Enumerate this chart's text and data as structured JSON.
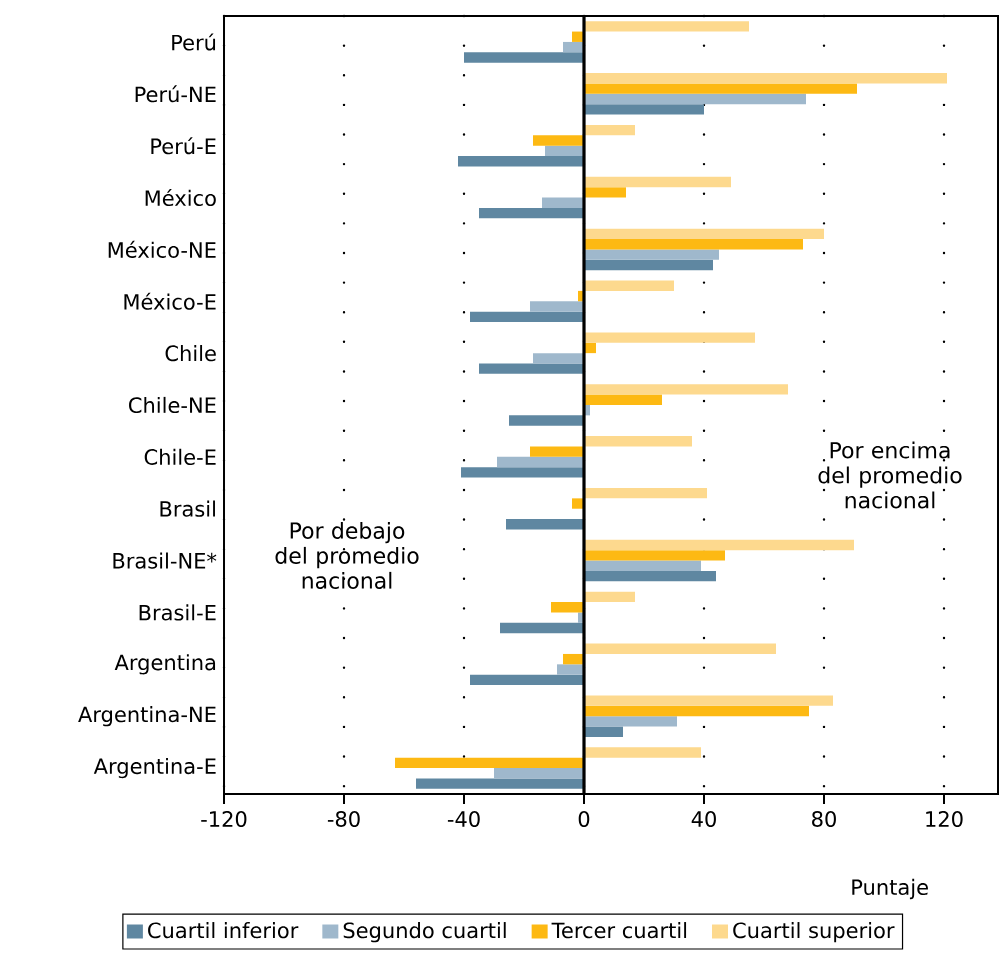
{
  "chart_data": {
    "type": "bar",
    "orientation": "horizontal",
    "xlabel": "Puntaje",
    "categories": [
      "Perú",
      "Perú-NE",
      "Perú-E",
      "México",
      "México-NE",
      "México-E",
      "Chile",
      "Chile-NE",
      "Chile-E",
      "Brasil",
      "Brasil-NE*",
      "Brasil-E",
      "Argentina",
      "Argentina-NE",
      "Argentina-E"
    ],
    "series": [
      {
        "name": "Cuartil inferior",
        "color": "#5f87a1",
        "values": [
          -40,
          40,
          -42,
          -35,
          43,
          -38,
          -35,
          -25,
          -41,
          -26,
          44,
          -28,
          -38,
          13,
          -56
        ]
      },
      {
        "name": "Segundo cuartil",
        "color": "#9fb8cc",
        "values": [
          -7,
          74,
          -13,
          -14,
          45,
          -18,
          -17,
          2,
          -29,
          0,
          39,
          -2,
          -9,
          31,
          -30
        ]
      },
      {
        "name": "Tercer cuartil",
        "color": "#fdb913",
        "values": [
          -4,
          91,
          -17,
          14,
          73,
          -2,
          4,
          26,
          -18,
          -4,
          47,
          -11,
          -7,
          75,
          -63
        ]
      },
      {
        "name": "Cuartil superior",
        "color": "#fdd98e",
        "values": [
          55,
          121,
          17,
          49,
          80,
          30,
          57,
          68,
          36,
          41,
          90,
          17,
          64,
          83,
          39
        ]
      }
    ],
    "xlim": [
      -120,
      138
    ],
    "xticks": [
      -120,
      -80,
      -40,
      0,
      40,
      80,
      120
    ],
    "grid": "x",
    "legend": "bottom",
    "ref_lines": [
      {
        "axis": "x",
        "value": 0
      }
    ],
    "annotations": [
      "Por encima del promedio nacional",
      "Por debajo del promedio nacional"
    ]
  }
}
